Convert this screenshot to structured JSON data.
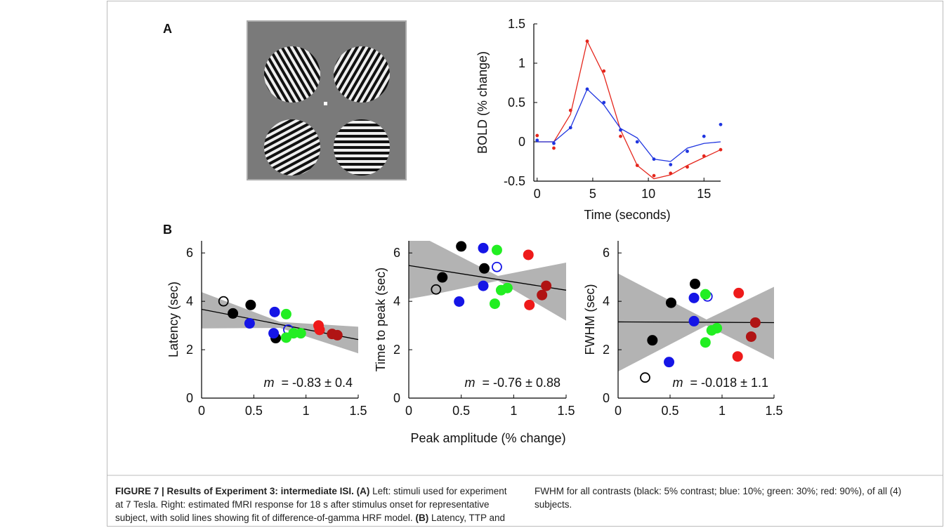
{
  "panel_labels": [
    "A",
    "B"
  ],
  "panel_b_xlabel": "Peak amplitude (% change)",
  "caption": {
    "title": "FIGURE 7 | Results of Experiment 3: intermediate ISI.",
    "part_a_label": "(A)",
    "part_a_text": "Left: stimuli used for experiment at 7 Tesla. Right: estimated fMRI response for 18 s after stimulus onset for representative subject, with solid lines showing fit of difference-of-gamma HRF model.",
    "part_b_label": "(B)",
    "part_b_text": "Latency, TTP and FWHM for all contrasts (black: 5% contrast; blue: 10%; green: 30%; red: 90%), of all (4) subjects."
  },
  "chart_data": [
    {
      "type": "line",
      "xlabel": "Time (seconds)",
      "ylabel": "BOLD (% change)",
      "x": [
        0,
        1.5,
        3,
        4.5,
        6,
        7.5,
        9,
        10.5,
        12,
        13.5,
        15,
        16.5
      ],
      "xlim": [
        -0.3,
        16.5
      ],
      "xticks": [
        0,
        5,
        10,
        15
      ],
      "ylim": [
        -0.5,
        1.5
      ],
      "yticks": [
        -0.5,
        0,
        0.5,
        1,
        1.5
      ],
      "series": [
        {
          "color": "#e5261c",
          "mode": "markers",
          "values": [
            0.08,
            -0.08,
            0.4,
            1.28,
            0.9,
            0.07,
            -0.3,
            -0.43,
            -0.4,
            -0.32,
            -0.18,
            -0.1
          ]
        },
        {
          "color": "#e5261c",
          "mode": "line",
          "values": [
            0,
            0,
            0.35,
            1.28,
            0.85,
            0.15,
            -0.3,
            -0.47,
            -0.42,
            -0.3,
            -0.2,
            -0.1
          ]
        },
        {
          "color": "#1f35e0",
          "mode": "markers",
          "values": [
            0.02,
            -0.02,
            0.18,
            0.67,
            0.5,
            0.15,
            0,
            -0.22,
            -0.29,
            -0.12,
            0.07,
            0.22
          ]
        },
        {
          "color": "#1f35e0",
          "mode": "line",
          "values": [
            0,
            0,
            0.18,
            0.67,
            0.47,
            0.17,
            0.05,
            -0.22,
            -0.25,
            -0.08,
            -0.02,
            0
          ]
        }
      ]
    },
    {
      "type": "scatter",
      "ylabel": "Latency (sec)",
      "xlim": [
        0,
        1.5
      ],
      "xticks": [
        0,
        0.5,
        1,
        1.5
      ],
      "ylim": [
        0,
        6.5
      ],
      "yticks": [
        0,
        2,
        4,
        6
      ],
      "band": {
        "x": [
          0,
          0.75,
          1.5
        ],
        "upper": [
          4.38,
          3.15,
          2.95
        ],
        "lower": [
          2.88,
          2.9,
          1.85
        ]
      },
      "fit": {
        "x": [
          0,
          1.5
        ],
        "y": [
          3.67,
          2.42
        ]
      },
      "annotation": {
        "symbol": "m",
        "text": "= -0.83 ± 0.4"
      },
      "series": [
        {
          "color": "#000000",
          "marker": "open",
          "x": [
            0.21
          ],
          "y": [
            4.0
          ]
        },
        {
          "color": "#000000",
          "marker": "filled",
          "x": [
            0.3,
            0.47,
            0.71
          ],
          "y": [
            3.5,
            3.85,
            2.48
          ]
        },
        {
          "color": "#1515e6",
          "marker": "filled",
          "x": [
            0.46,
            0.7,
            0.69
          ],
          "y": [
            3.09,
            3.56,
            2.68
          ]
        },
        {
          "color": "#1515e6",
          "marker": "open",
          "x": [
            0.83
          ],
          "y": [
            2.83
          ]
        },
        {
          "color": "#22ee22",
          "marker": "filled",
          "x": [
            0.81,
            0.81,
            0.88,
            0.95
          ],
          "y": [
            3.47,
            2.5,
            2.68,
            2.68
          ]
        },
        {
          "color": "#ee1a1a",
          "marker": "filled",
          "x": [
            1.12,
            1.13
          ],
          "y": [
            3.0,
            2.82
          ]
        },
        {
          "color": "#b01414",
          "marker": "filled",
          "x": [
            1.25,
            1.3
          ],
          "y": [
            2.65,
            2.6
          ]
        }
      ]
    },
    {
      "type": "scatter",
      "ylabel": "Time to peak (sec)",
      "xlim": [
        0,
        1.5
      ],
      "xticks": [
        0,
        0.5,
        1,
        1.5
      ],
      "ylim": [
        0,
        6.5
      ],
      "yticks": [
        0,
        2,
        4,
        6
      ],
      "band": {
        "x": [
          0,
          0.2,
          0.85,
          1.5
        ],
        "upper": [
          6.5,
          6.5,
          5.05,
          5.6
        ],
        "lower": [
          4.1,
          4.25,
          4.85,
          3.2
        ]
      },
      "fit": {
        "x": [
          0,
          1.5
        ],
        "y": [
          5.48,
          4.46
        ]
      },
      "annotation": {
        "symbol": "m",
        "text": "= -0.76 ± 0.88"
      },
      "series": [
        {
          "color": "#000000",
          "marker": "open",
          "x": [
            0.26
          ],
          "y": [
            4.49
          ]
        },
        {
          "color": "#000000",
          "marker": "filled",
          "x": [
            0.32,
            0.5,
            0.72
          ],
          "y": [
            4.99,
            6.27,
            5.36
          ]
        },
        {
          "color": "#1515e6",
          "marker": "filled",
          "x": [
            0.48,
            0.71,
            0.71
          ],
          "y": [
            3.99,
            6.2,
            4.64
          ]
        },
        {
          "color": "#1515e6",
          "marker": "open",
          "x": [
            0.84
          ],
          "y": [
            5.42
          ]
        },
        {
          "color": "#22ee22",
          "marker": "filled",
          "x": [
            0.84,
            0.82,
            0.88,
            0.94
          ],
          "y": [
            6.12,
            3.9,
            4.46,
            4.55
          ]
        },
        {
          "color": "#ee1a1a",
          "marker": "filled",
          "x": [
            1.14,
            1.15
          ],
          "y": [
            5.92,
            3.85
          ]
        },
        {
          "color": "#b01414",
          "marker": "filled",
          "x": [
            1.31,
            1.27
          ],
          "y": [
            4.64,
            4.26
          ]
        }
      ]
    },
    {
      "type": "scatter",
      "ylabel": "FWHM (sec)",
      "xlim": [
        0,
        1.5
      ],
      "xticks": [
        0,
        0.5,
        1,
        1.5
      ],
      "ylim": [
        0,
        6.5
      ],
      "yticks": [
        0,
        2,
        4,
        6
      ],
      "band": {
        "x": [
          0,
          0.85,
          1.5
        ],
        "upper": [
          5.15,
          3.25,
          4.6
        ],
        "lower": [
          1.1,
          3.0,
          1.6
        ]
      },
      "fit": {
        "x": [
          0,
          1.5
        ],
        "y": [
          3.15,
          3.12
        ]
      },
      "annotation": {
        "symbol": "m",
        "text": "= -0.018 ± 1.1"
      },
      "series": [
        {
          "color": "#000000",
          "marker": "open",
          "x": [
            0.26
          ],
          "y": [
            0.85
          ]
        },
        {
          "color": "#000000",
          "marker": "filled",
          "x": [
            0.33,
            0.51,
            0.74
          ],
          "y": [
            2.39,
            3.94,
            4.72
          ]
        },
        {
          "color": "#1515e6",
          "marker": "filled",
          "x": [
            0.49,
            0.73,
            0.73
          ],
          "y": [
            1.49,
            4.14,
            3.18
          ]
        },
        {
          "color": "#1515e6",
          "marker": "open",
          "x": [
            0.86
          ],
          "y": [
            4.2
          ]
        },
        {
          "color": "#22ee22",
          "marker": "filled",
          "x": [
            0.84,
            0.84,
            0.9,
            0.95
          ],
          "y": [
            4.29,
            2.3,
            2.8,
            2.89
          ]
        },
        {
          "color": "#ee1a1a",
          "marker": "filled",
          "x": [
            1.16,
            1.15
          ],
          "y": [
            4.34,
            1.72
          ]
        },
        {
          "color": "#b01414",
          "marker": "filled",
          "x": [
            1.28,
            1.32
          ],
          "y": [
            2.54,
            3.12
          ]
        }
      ]
    }
  ]
}
